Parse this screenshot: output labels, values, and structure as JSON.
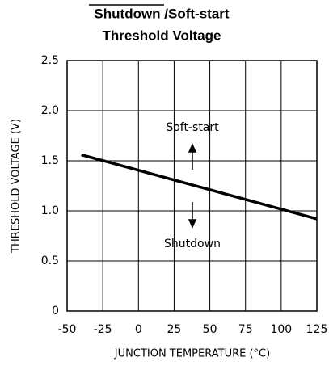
{
  "chart_data": {
    "type": "line",
    "title": [
      "Shutdown /Soft-start",
      "Threshold Voltage"
    ],
    "x_label": "JUNCTION TEMPERATURE (°C)",
    "y_label": "THRESHOLD VOLTAGE (V)",
    "annotations": [
      "Soft-start",
      "Shutdown"
    ],
    "x": [
      -40,
      125
    ],
    "series": [
      {
        "color": "#000000",
        "values": [
          1.56,
          0.92
        ]
      }
    ],
    "xlim": [
      -50,
      125
    ],
    "xticks": [
      -50,
      -25,
      0,
      25,
      50,
      75,
      100,
      125
    ],
    "ylim": [
      0,
      2.5
    ],
    "yticks": [
      0,
      0.5,
      {
        "value": 1.0,
        "label": "1.0"
      },
      1.5,
      {
        "value": 2.0,
        "label": "2.0"
      },
      2.5
    ],
    "grid": true
  }
}
